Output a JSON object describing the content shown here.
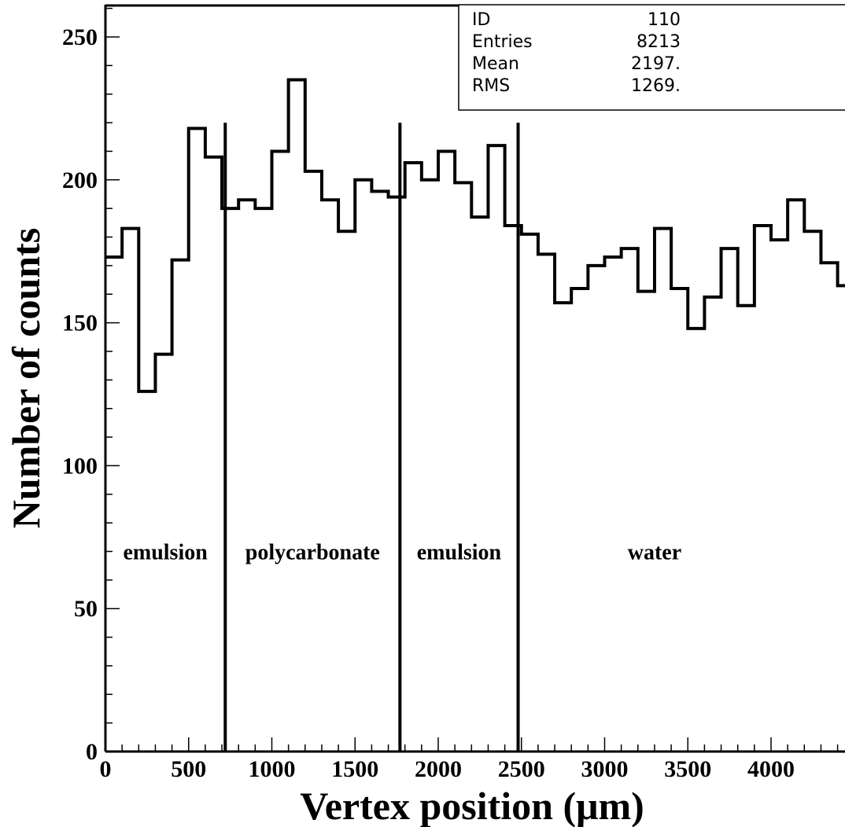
{
  "chart_data": {
    "type": "histogram",
    "xlabel": "Vertex position (μm)",
    "ylabel": "Number of counts",
    "xlim": [
      0,
      4450
    ],
    "ylim": [
      0,
      260
    ],
    "x_ticks": [
      0,
      500,
      1000,
      1500,
      2000,
      2500,
      3000,
      3500,
      4000
    ],
    "y_ticks": [
      0,
      50,
      100,
      150,
      200,
      250
    ],
    "bin_width": 100,
    "bin_edges_start": 0,
    "values": [
      173,
      183,
      126,
      139,
      172,
      218,
      208,
      190,
      193,
      190,
      210,
      235,
      203,
      193,
      182,
      200,
      196,
      194,
      206,
      200,
      210,
      199,
      187,
      212,
      184,
      181,
      174,
      157,
      162,
      170,
      173,
      176,
      161,
      183,
      162,
      148,
      159,
      176,
      156,
      184,
      179,
      193,
      182,
      171,
      163
    ],
    "boundaries": [
      {
        "x": 720,
        "top": 220
      },
      {
        "x": 1770,
        "top": 220
      },
      {
        "x": 2480,
        "top": 220
      }
    ],
    "regions": [
      {
        "label": "emulsion",
        "x": 360,
        "y": 70
      },
      {
        "label": "polycarbonate",
        "x": 1245,
        "y": 70
      },
      {
        "label": "emulsion",
        "x": 2125,
        "y": 70
      },
      {
        "label": "water",
        "x": 3300,
        "y": 70
      }
    ],
    "stats": [
      {
        "name": "ID",
        "value": "110"
      },
      {
        "name": "Entries",
        "value": "8213"
      },
      {
        "name": "Mean",
        "value": "2197."
      },
      {
        "name": "RMS",
        "value": "1269."
      }
    ]
  }
}
